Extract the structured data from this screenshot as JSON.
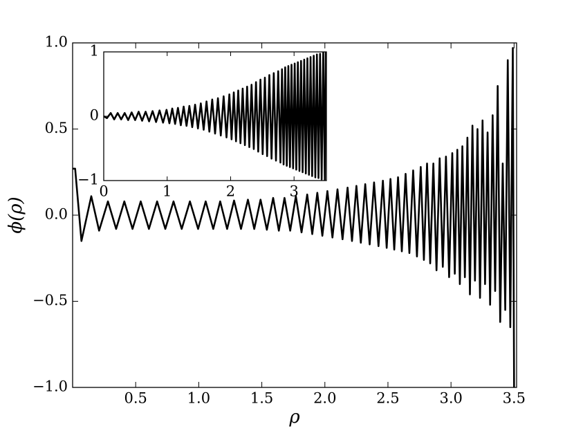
{
  "chart_data": [
    {
      "type": "line",
      "ylabel": "ϕ(ρ)",
      "xlabel": "ρ",
      "xlim": [
        0,
        3.52
      ],
      "ylim": [
        -1,
        1
      ],
      "xticks": [
        0.5,
        {
          "value": 1,
          "label": "1.0"
        },
        1.5,
        {
          "value": 2,
          "label": "2.0"
        },
        2.5,
        {
          "value": 3,
          "label": "3.0"
        },
        3.5
      ],
      "yticks": [
        {
          "value": -1,
          "label": "−1.0"
        },
        {
          "value": -0.5,
          "label": "−0.5"
        },
        {
          "value": 0,
          "label": "0.0"
        },
        0.5,
        {
          "value": 1,
          "label": "1.0"
        }
      ],
      "series": [
        {
          "color": "#000000",
          "x": [
            0,
            0.02,
            0.07,
            0.148,
            0.21,
            0.28,
            0.345,
            0.41,
            0.475,
            0.54,
            0.605,
            0.67,
            0.735,
            0.8,
            0.865,
            0.93,
            0.995,
            1.055,
            1.115,
            1.17,
            1.225,
            1.28,
            1.335,
            1.39,
            1.44,
            1.49,
            1.54,
            1.59,
            1.635,
            1.68,
            1.725,
            1.77,
            1.815,
            1.86,
            1.9,
            1.94,
            1.98,
            2.02,
            2.06,
            2.1,
            2.14,
            2.18,
            2.215,
            2.25,
            2.285,
            2.32,
            2.355,
            2.39,
            2.425,
            2.46,
            2.49,
            2.52,
            2.55,
            2.58,
            2.61,
            2.64,
            2.67,
            2.7,
            2.73,
            2.76,
            2.785,
            2.81,
            2.835,
            2.86,
            2.885,
            2.91,
            2.935,
            2.96,
            2.985,
            3.01,
            3.03,
            3.05,
            3.07,
            3.09,
            3.11,
            3.13,
            3.15,
            3.17,
            3.19,
            3.21,
            3.23,
            3.25,
            3.27,
            3.29,
            3.31,
            3.33,
            3.35,
            3.37,
            3.39,
            3.41,
            3.43,
            3.45,
            3.47,
            3.49,
            3.5
          ],
          "values": [
            0.27,
            0.27,
            -0.15,
            0.11,
            -0.09,
            0.08,
            -0.08,
            0.08,
            -0.08,
            0.08,
            -0.08,
            0.08,
            -0.08,
            0.08,
            -0.08,
            0.08,
            -0.08,
            0.08,
            -0.08,
            0.08,
            -0.08,
            0.085,
            -0.08,
            0.09,
            -0.08,
            0.09,
            -0.085,
            0.1,
            -0.09,
            0.1,
            -0.09,
            0.11,
            -0.1,
            0.12,
            -0.11,
            0.13,
            -0.12,
            0.14,
            -0.13,
            0.15,
            -0.14,
            0.16,
            -0.15,
            0.17,
            -0.16,
            0.18,
            -0.17,
            0.19,
            -0.18,
            0.2,
            -0.19,
            0.21,
            -0.2,
            0.22,
            -0.21,
            0.24,
            -0.22,
            0.26,
            -0.24,
            0.28,
            -0.26,
            0.3,
            -0.28,
            0.3,
            -0.32,
            0.33,
            -0.3,
            0.34,
            -0.36,
            0.36,
            -0.34,
            0.38,
            -0.4,
            0.4,
            -0.36,
            0.45,
            -0.46,
            0.52,
            -0.38,
            0.5,
            -0.48,
            0.55,
            -0.4,
            0.48,
            -0.52,
            0.58,
            -0.44,
            0.75,
            -0.62,
            0.3,
            -0.55,
            0.9,
            -0.65,
            0.97,
            -1.0
          ]
        }
      ]
    },
    {
      "type": "line",
      "xlim": [
        0,
        3.51
      ],
      "ylim": [
        -1,
        1
      ],
      "xticks": [
        0,
        1,
        2,
        3
      ],
      "yticks": [
        {
          "value": -1,
          "label": "−1"
        },
        0,
        1
      ],
      "series": [
        {
          "color": "#000000",
          "x": [
            0,
            0.05,
            0.11,
            0.165,
            0.22,
            0.275,
            0.33,
            0.385,
            0.44,
            0.495,
            0.55,
            0.605,
            0.66,
            0.715,
            0.77,
            0.825,
            0.88,
            0.935,
            0.99,
            1.035,
            1.08,
            1.125,
            1.17,
            1.215,
            1.26,
            1.305,
            1.35,
            1.395,
            1.44,
            1.485,
            1.53,
            1.575,
            1.62,
            1.665,
            1.71,
            1.755,
            1.8,
            1.845,
            1.89,
            1.935,
            1.98,
            2.015,
            2.05,
            2.085,
            2.12,
            2.155,
            2.19,
            2.225,
            2.26,
            2.295,
            2.33,
            2.365,
            2.4,
            2.435,
            2.47,
            2.505,
            2.54,
            2.575,
            2.61,
            2.645,
            2.68,
            2.715,
            2.75,
            2.785,
            2.81,
            2.835,
            2.86,
            2.885,
            2.91,
            2.935,
            2.96,
            2.985,
            3.01,
            3.035,
            3.06,
            3.085,
            3.11,
            3.135,
            3.16,
            3.185,
            3.21,
            3.235,
            3.26,
            3.285,
            3.31,
            3.335,
            3.36,
            3.385,
            3.41,
            3.435,
            3.46,
            3.485,
            3.5
          ],
          "values": [
            0,
            -0.03,
            0.05,
            -0.05,
            0.05,
            -0.05,
            0.05,
            -0.06,
            0.06,
            -0.06,
            0.07,
            -0.07,
            0.07,
            -0.08,
            0.08,
            -0.09,
            0.09,
            -0.1,
            0.1,
            -0.11,
            0.12,
            -0.12,
            0.13,
            -0.14,
            0.15,
            -0.15,
            0.16,
            -0.17,
            0.18,
            -0.19,
            0.2,
            -0.21,
            0.23,
            -0.24,
            0.26,
            -0.27,
            0.28,
            -0.3,
            0.31,
            -0.33,
            0.34,
            -0.36,
            0.37,
            -0.39,
            0.4,
            -0.42,
            0.43,
            -0.45,
            0.46,
            -0.48,
            0.49,
            -0.51,
            0.53,
            -0.55,
            0.57,
            -0.59,
            0.6,
            -0.62,
            0.64,
            -0.66,
            0.67,
            -0.69,
            0.7,
            -0.72,
            0.73,
            -0.75,
            0.76,
            -0.77,
            0.78,
            -0.79,
            0.8,
            -0.81,
            0.82,
            -0.83,
            0.84,
            -0.85,
            0.86,
            -0.87,
            0.88,
            -0.89,
            0.9,
            -0.91,
            0.92,
            -0.93,
            0.94,
            -0.95,
            0.96,
            -0.96,
            0.97,
            -0.98,
            0.99,
            -0.99,
            1.0
          ]
        }
      ]
    }
  ]
}
